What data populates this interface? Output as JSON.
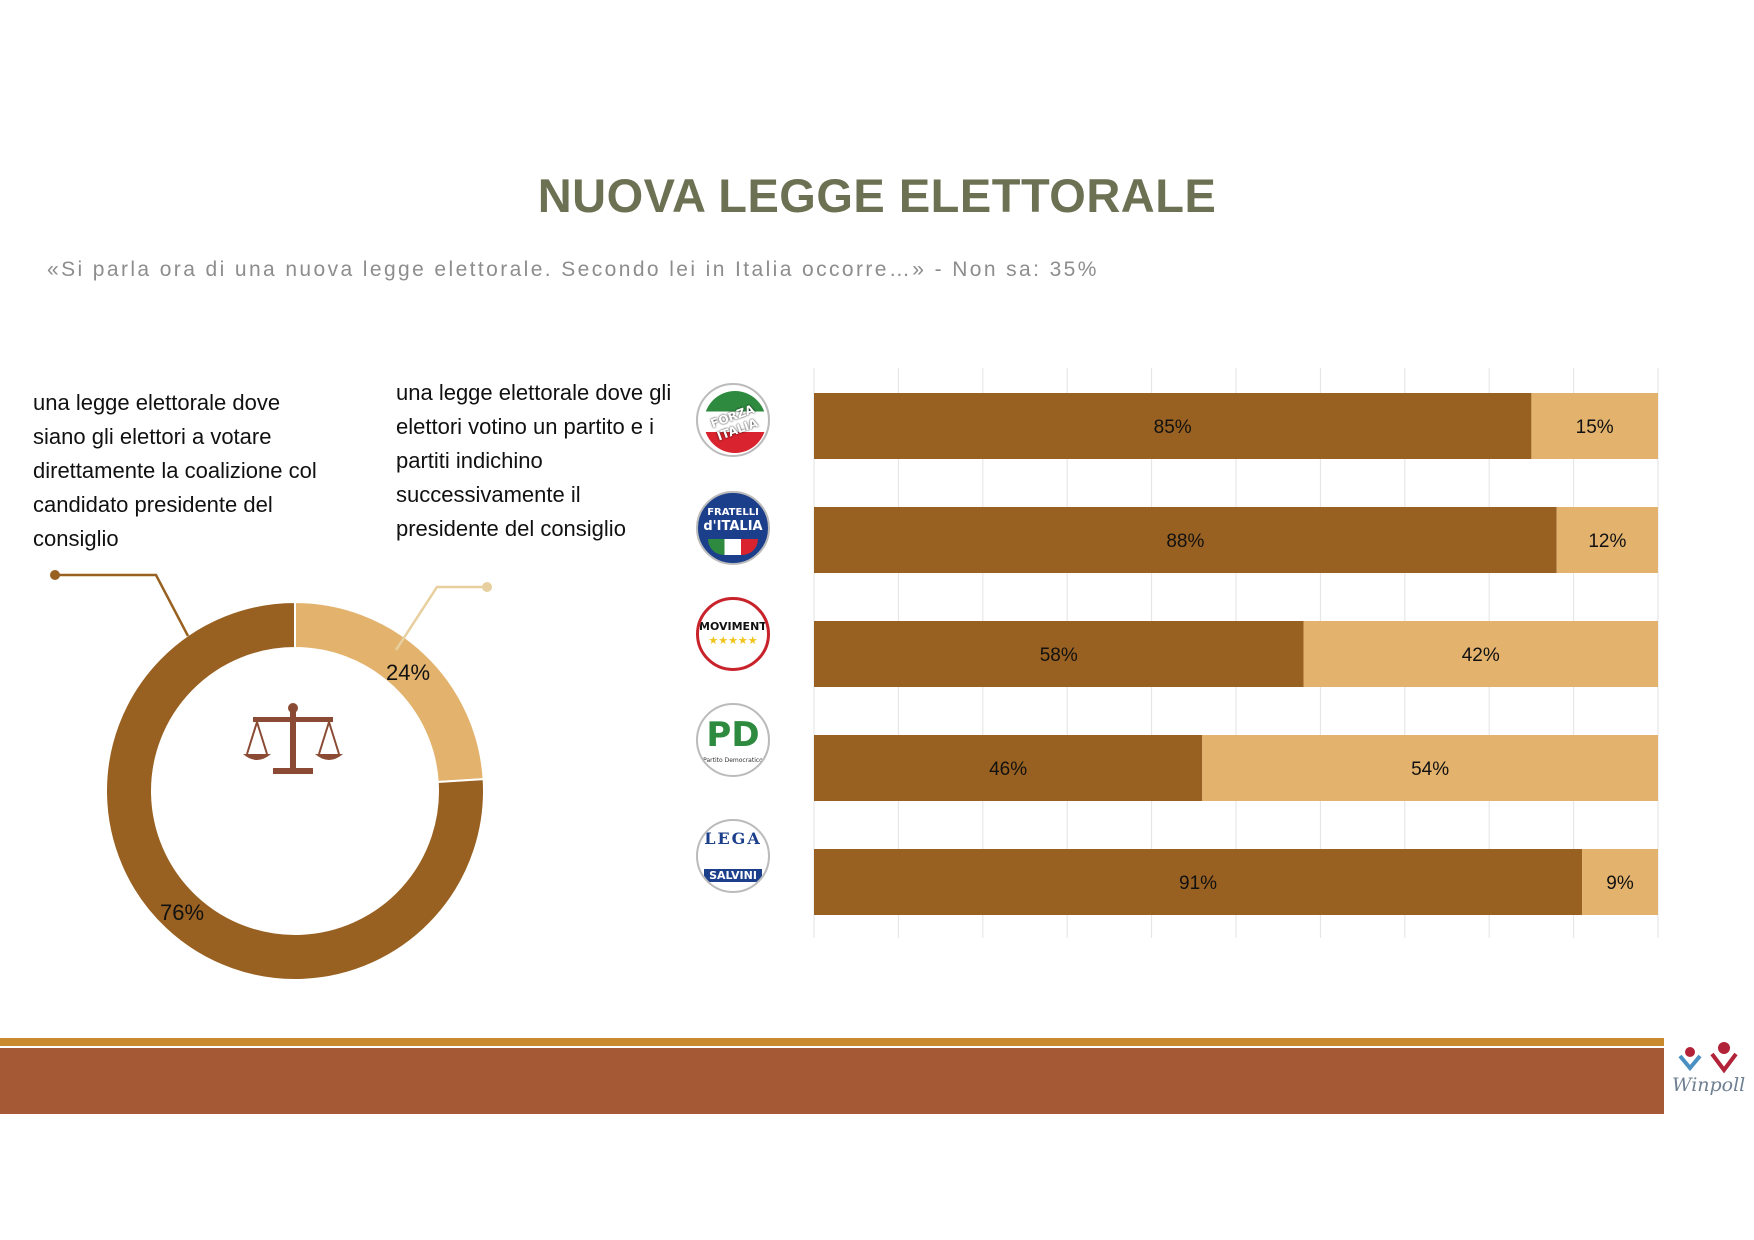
{
  "title": "NUOVA LEGGE ELETTORALE",
  "subtitle": "«Si parla ora di una nuova legge elettorale. Secondo lei in Italia occorre…» - Non sa: 35%",
  "colors": {
    "dark": "#996121",
    "light": "#e3b36e",
    "title": "#6b7152",
    "footer_top": "#c98a2e",
    "footer_main": "#a55934"
  },
  "chart_data": [
    {
      "type": "pie",
      "categories": [
        "una legge elettorale dove siano gli elettori a votare direttamente la coalizione col candidato presidente del consiglio",
        " una legge elettorale dove gli elettori votino un partito e i partiti indichino successivamente il presidente del consiglio"
      ],
      "values": [
        76,
        24
      ],
      "labels": [
        "76%",
        "24%"
      ],
      "center_icon": "scales-of-justice-icon"
    },
    {
      "type": "bar",
      "orientation": "horizontal",
      "stacked": true,
      "categories": [
        "Forza Italia",
        "Fratelli d'Italia",
        "Movimento 5 Stelle",
        "Partito Democratico",
        "Lega"
      ],
      "series": [
        {
          "values": [
            85,
            88,
            58,
            46,
            91
          ],
          "labels": [
            "85%",
            "88%",
            "58%",
            "46%",
            "91%"
          ]
        },
        {
          "values": [
            15,
            12,
            42,
            54,
            9
          ],
          "labels": [
            "15%",
            "12%",
            "42%",
            "54%",
            "9%"
          ]
        }
      ],
      "xlim": [
        0,
        100
      ],
      "grid": true
    }
  ],
  "party_logos": [
    {
      "icon": "forza-italia-logo",
      "text": "FORZA ITALIA"
    },
    {
      "icon": "fratelli-ditalia-logo",
      "text_top": "FRATELLI",
      "text_bottom": "d'ITALIA"
    },
    {
      "icon": "movimento-5-stelle-logo",
      "text": "MOVIMENTO",
      "stars": "★★★★★"
    },
    {
      "icon": "partito-democratico-logo",
      "text": "PD",
      "subtext": "Partito Democratico"
    },
    {
      "icon": "lega-salvini-logo",
      "text_top": "LEGA",
      "text_bottom": "SALVINI"
    }
  ],
  "brand": {
    "logo_text": "Winpoll"
  }
}
